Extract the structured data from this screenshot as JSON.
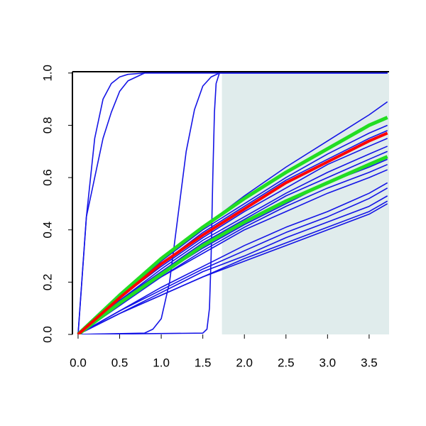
{
  "chart_data": {
    "type": "line",
    "xlim": [
      -0.068,
      3.74
    ],
    "ylim": [
      0,
      1.005
    ],
    "xticks": [
      {
        "value": 0,
        "label": "0.0"
      },
      0.5,
      {
        "value": 1,
        "label": "1.0"
      },
      1.5,
      {
        "value": 2,
        "label": "2.0"
      },
      2.5,
      {
        "value": 3,
        "label": "3.0"
      },
      3.5
    ],
    "yticks": [
      {
        "value": 0,
        "label": "0.0"
      },
      0.2,
      0.4,
      0.6,
      0.8,
      {
        "value": 1,
        "label": "1.0"
      }
    ],
    "shade": {
      "x": [
        1.73,
        3.74
      ],
      "color": "#e0ecec"
    },
    "series": [
      {
        "color": "#1414e6",
        "x": [
          0,
          0.5,
          1,
          1.5,
          2,
          2.5,
          3,
          3.5,
          3.72
        ],
        "values": [
          0,
          0.14,
          0.28,
          0.41,
          0.53,
          0.64,
          0.74,
          0.84,
          0.89
        ]
      },
      {
        "color": "#1414e6",
        "x": [
          0,
          0.5,
          1,
          1.5,
          2,
          2.5,
          3,
          3.5,
          3.72
        ],
        "values": [
          0,
          0.14,
          0.28,
          0.4,
          0.5,
          0.6,
          0.69,
          0.77,
          0.8
        ]
      },
      {
        "color": "#1414e6",
        "x": [
          0,
          0.5,
          1,
          1.5,
          2,
          2.5,
          3,
          3.5,
          3.72
        ],
        "values": [
          0,
          0.14,
          0.27,
          0.39,
          0.49,
          0.59,
          0.67,
          0.75,
          0.78
        ]
      },
      {
        "color": "#1414e6",
        "x": [
          0,
          0.5,
          1,
          1.5,
          2,
          2.5,
          3,
          3.5,
          3.72
        ],
        "values": [
          0,
          0.14,
          0.26,
          0.37,
          0.47,
          0.56,
          0.65,
          0.72,
          0.75
        ]
      },
      {
        "color": "#1414e6",
        "x": [
          0,
          0.5,
          1,
          1.5,
          2,
          2.5,
          3,
          3.5,
          3.72
        ],
        "values": [
          0,
          0.13,
          0.25,
          0.36,
          0.45,
          0.54,
          0.62,
          0.69,
          0.72
        ]
      },
      {
        "color": "#1414e6",
        "x": [
          0,
          0.5,
          1,
          1.5,
          2,
          2.5,
          3,
          3.5,
          3.72
        ],
        "values": [
          0,
          0.13,
          0.24,
          0.35,
          0.44,
          0.53,
          0.6,
          0.67,
          0.7
        ]
      },
      {
        "color": "#1414e6",
        "x": [
          0,
          0.5,
          1,
          1.5,
          2,
          2.5,
          3,
          3.5,
          3.72
        ],
        "values": [
          0,
          0.12,
          0.23,
          0.33,
          0.42,
          0.5,
          0.58,
          0.64,
          0.67
        ]
      },
      {
        "color": "#1414e6",
        "x": [
          0,
          0.5,
          1,
          1.5,
          2,
          2.5,
          3,
          3.5,
          3.72
        ],
        "values": [
          0,
          0.12,
          0.22,
          0.32,
          0.41,
          0.49,
          0.56,
          0.62,
          0.65
        ]
      },
      {
        "color": "#1414e6",
        "x": [
          0,
          0.5,
          1,
          1.5,
          2,
          2.5,
          3,
          3.5,
          3.72
        ],
        "values": [
          0,
          0.11,
          0.22,
          0.31,
          0.4,
          0.47,
          0.54,
          0.6,
          0.63
        ]
      },
      {
        "color": "#1414e6",
        "x": [
          0,
          0.5,
          1,
          1.5,
          2,
          2.5,
          3,
          3.5,
          3.72
        ],
        "values": [
          0,
          0.09,
          0.18,
          0.26,
          0.34,
          0.41,
          0.47,
          0.54,
          0.58
        ]
      },
      {
        "color": "#1414e6",
        "x": [
          0,
          0.5,
          1,
          1.5,
          2,
          2.5,
          3,
          3.5,
          3.72
        ],
        "values": [
          0,
          0.09,
          0.17,
          0.25,
          0.32,
          0.39,
          0.45,
          0.52,
          0.56
        ]
      },
      {
        "color": "#1414e6",
        "x": [
          0,
          0.5,
          1,
          1.5,
          2,
          2.5,
          3,
          3.5,
          3.72
        ],
        "values": [
          0,
          0.08,
          0.16,
          0.24,
          0.3,
          0.37,
          0.43,
          0.49,
          0.53
        ]
      },
      {
        "color": "#1414e6",
        "x": [
          0,
          0.5,
          1,
          1.5,
          2,
          2.5,
          3,
          3.5,
          3.72
        ],
        "values": [
          0,
          0.08,
          0.15,
          0.22,
          0.29,
          0.35,
          0.41,
          0.47,
          0.51
        ]
      },
      {
        "color": "#1414e6",
        "x": [
          0,
          0.5,
          1,
          1.5,
          2,
          2.5,
          3,
          3.5,
          3.72
        ],
        "values": [
          0,
          0.08,
          0.15,
          0.22,
          0.28,
          0.34,
          0.4,
          0.46,
          0.5
        ]
      },
      {
        "color": "#1414e6",
        "x": [
          0,
          0.1,
          0.2,
          0.3,
          0.4,
          0.5,
          0.6,
          0.8,
          3.72
        ],
        "values": [
          0,
          0.45,
          0.75,
          0.9,
          0.96,
          0.985,
          0.995,
          1,
          1
        ]
      },
      {
        "color": "#1414e6",
        "x": [
          0,
          0.1,
          0.2,
          0.3,
          0.4,
          0.5,
          0.6,
          0.8,
          3.72
        ],
        "values": [
          0,
          0.45,
          0.6,
          0.75,
          0.85,
          0.93,
          0.97,
          1,
          1
        ]
      },
      {
        "color": "#1414e6",
        "x": [
          0,
          0.8,
          0.9,
          1.0,
          1.1,
          1.2,
          1.3,
          1.4,
          1.5,
          1.6,
          1.7,
          3.72
        ],
        "values": [
          0,
          0.005,
          0.02,
          0.06,
          0.2,
          0.45,
          0.7,
          0.86,
          0.95,
          0.985,
          1,
          1
        ]
      },
      {
        "color": "#1414e6",
        "x": [
          0,
          1.5,
          1.55,
          1.58,
          1.6,
          1.62,
          1.64,
          1.66,
          1.7,
          3.72
        ],
        "values": [
          0,
          0.005,
          0.02,
          0.1,
          0.3,
          0.6,
          0.85,
          0.96,
          1,
          1
        ]
      },
      {
        "color": "#22dd22",
        "width": 5,
        "x": [
          0,
          0.5,
          1,
          1.5,
          2,
          2.5,
          3,
          3.5,
          3.72
        ],
        "values": [
          0,
          0.15,
          0.29,
          0.41,
          0.52,
          0.62,
          0.71,
          0.8,
          0.83
        ]
      },
      {
        "color": "#22dd22",
        "width": 5,
        "x": [
          0,
          0.5,
          1,
          1.5,
          2,
          2.5,
          3,
          3.5,
          3.72
        ],
        "values": [
          0,
          0.12,
          0.23,
          0.34,
          0.43,
          0.51,
          0.58,
          0.65,
          0.68
        ]
      },
      {
        "color": "#ff0000",
        "width": 4,
        "x": [
          0,
          0.5,
          1,
          1.5,
          2,
          2.5,
          3,
          3.5,
          3.72
        ],
        "values": [
          0,
          0.14,
          0.27,
          0.38,
          0.48,
          0.58,
          0.66,
          0.74,
          0.77
        ]
      }
    ]
  }
}
